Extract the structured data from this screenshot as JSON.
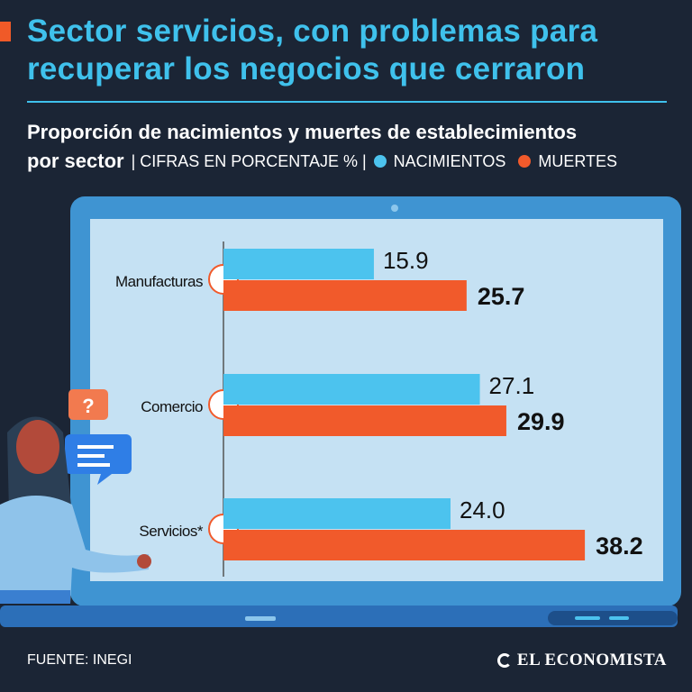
{
  "title": "Sector servicios, con problemas para recuperar los negocios que cerraron",
  "subtitle": {
    "main": "Proporción de nacimientos y muertes de establecimientos",
    "bold_part": "por sector",
    "units": "| CIFRAS EN PORCENTAJE % |"
  },
  "colors": {
    "nacimientos": "#4cc3ee",
    "muertes": "#f15a2b",
    "background": "#1b2535"
  },
  "chart_data": {
    "type": "bar",
    "orientation": "horizontal",
    "title": "Proporción de nacimientos y muertes de establecimientos por sector",
    "categories": [
      "Manufacturas",
      "Comercio",
      "Servicios*"
    ],
    "series": [
      {
        "name": "NACIMIENTOS",
        "values": [
          15.9,
          27.1,
          24.0
        ],
        "labels": [
          "15.9",
          "27.1",
          "24.0"
        ]
      },
      {
        "name": "MUERTES",
        "values": [
          25.7,
          29.9,
          38.2
        ],
        "labels": [
          "25.7",
          "29.9",
          "38.2"
        ]
      }
    ],
    "xlabel": "",
    "ylabel": "CIFRAS EN PORCENTAJE %",
    "legend": "top"
  },
  "footer": {
    "source": "FUENTE: INEGI",
    "brand": "EL ECONOMISTA"
  },
  "illustration": {
    "question_mark": "?"
  }
}
